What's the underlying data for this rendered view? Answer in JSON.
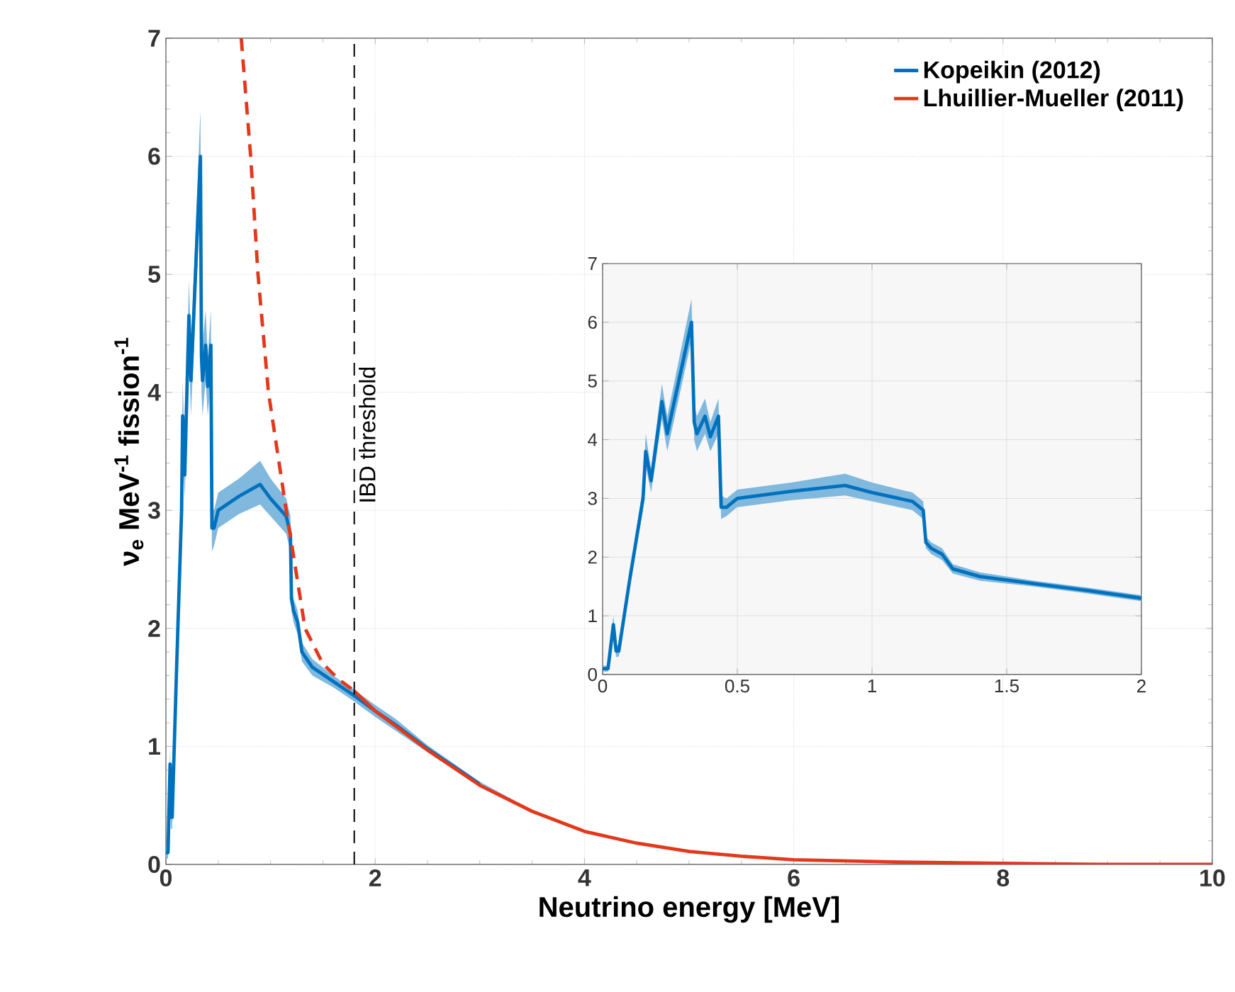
{
  "chart_data": [
    {
      "type": "line",
      "xlabel": "Neutrino energy [MeV]",
      "ylabel": "ν$_{e}$ MeV$^{-1}$ fission$^{-1}$",
      "xlim": [
        0,
        10
      ],
      "ylim": [
        0,
        7
      ],
      "xticks": [
        0,
        2,
        4,
        6,
        8,
        10
      ],
      "yticks": [
        0,
        1,
        2,
        3,
        4,
        5,
        6,
        7
      ],
      "grid": true,
      "legend": "top right",
      "marker": "none",
      "series": [
        {
          "name": "Kopeikin (2012)",
          "color": "#0072bd",
          "line_style": "solid",
          "x": [
            0,
            0.02,
            0.04,
            0.05,
            0.06,
            0.1,
            0.15,
            0.16,
            0.18,
            0.22,
            0.24,
            0.33,
            0.34,
            0.35,
            0.38,
            0.4,
            0.43,
            0.44,
            0.46,
            0.5,
            0.7,
            0.9,
            1.0,
            1.15,
            1.19,
            1.2,
            1.22,
            1.26,
            1.3,
            1.4,
            1.6,
            1.8,
            2.0,
            2.2,
            2.5,
            3,
            3.5,
            4,
            4.5,
            5,
            5.5,
            6,
            7,
            8,
            9,
            10
          ],
          "values": [
            0.1,
            0.1,
            0.85,
            0.4,
            0.4,
            1.6,
            3.0,
            3.8,
            3.3,
            4.65,
            4.1,
            6.0,
            4.3,
            4.1,
            4.4,
            4.05,
            4.4,
            2.85,
            2.85,
            3.0,
            3.12,
            3.22,
            3.1,
            2.95,
            2.8,
            2.25,
            2.15,
            2.05,
            1.8,
            1.67,
            1.55,
            1.43,
            1.3,
            1.18,
            0.98,
            0.68,
            null,
            null,
            null,
            null,
            null,
            null,
            null,
            null,
            null,
            null
          ],
          "lower": [
            0.05,
            0.05,
            0.7,
            0.3,
            0.3,
            1.5,
            2.8,
            3.55,
            3.1,
            4.35,
            3.8,
            5.7,
            4.0,
            3.8,
            4.1,
            3.8,
            4.1,
            2.65,
            2.7,
            2.85,
            2.97,
            3.05,
            2.95,
            2.8,
            2.65,
            2.15,
            2.05,
            1.95,
            1.72,
            1.6,
            1.5,
            1.38,
            1.25,
            1.13,
            0.95,
            0.66,
            0.44,
            0.27,
            0.17,
            0.1,
            0.06,
            0.03,
            0.01,
            0,
            0,
            0
          ],
          "upper": [
            0.15,
            0.15,
            1.0,
            0.5,
            0.5,
            1.7,
            3.2,
            4.1,
            3.5,
            4.95,
            4.4,
            6.4,
            4.6,
            4.4,
            4.7,
            4.3,
            4.7,
            3.05,
            3.0,
            3.15,
            3.27,
            3.42,
            3.27,
            3.1,
            2.95,
            2.35,
            2.25,
            2.15,
            1.88,
            1.74,
            1.6,
            1.48,
            1.35,
            1.23,
            1.01,
            0.7,
            0.46,
            0.29,
            0.19,
            0.12,
            0.08,
            0.05,
            0.02,
            0.01,
            0,
            0
          ]
        },
        {
          "color": "#e2381b",
          "line_style": "dashed",
          "x": [
            0.72,
            0.81,
            0.88,
            0.98,
            1.15,
            1.33,
            1.5,
            1.65,
            1.8
          ],
          "values": [
            7,
            6,
            5,
            4,
            3,
            2,
            1.7,
            1.57,
            1.47
          ]
        },
        {
          "name": "Lhuillier-Mueller (2011)",
          "color": "#e2381b",
          "line_style": "solid",
          "x": [
            1.8,
            2.0,
            2.2,
            2.5,
            3,
            3.5,
            4,
            4.5,
            5,
            5.5,
            6,
            7,
            8,
            9,
            10
          ],
          "values": [
            1.47,
            1.3,
            1.17,
            0.97,
            0.67,
            0.45,
            0.28,
            0.18,
            0.11,
            0.07,
            0.04,
            0.02,
            0.01,
            0,
            0
          ]
        }
      ],
      "ref_lines": [
        {
          "axis": "x",
          "value": 1.8,
          "label": "IBD threshold",
          "color": "#000000",
          "line_style": "dashed"
        }
      ]
    },
    {
      "type": "line",
      "xlim": [
        0,
        2
      ],
      "ylim": [
        0,
        7
      ],
      "xticks": [
        0,
        0.5,
        1,
        1.5,
        2
      ],
      "yticks": [
        0,
        1,
        2,
        3,
        4,
        5,
        6,
        7
      ],
      "grid": true,
      "marker": "none",
      "series": [
        {
          "color": "#0072bd",
          "line_style": "solid",
          "x": [
            0,
            0.02,
            0.04,
            0.05,
            0.06,
            0.1,
            0.15,
            0.16,
            0.18,
            0.22,
            0.24,
            0.33,
            0.34,
            0.35,
            0.38,
            0.4,
            0.43,
            0.44,
            0.46,
            0.5,
            0.7,
            0.9,
            1.0,
            1.15,
            1.19,
            1.2,
            1.22,
            1.26,
            1.3,
            1.4,
            1.6,
            1.8,
            2.0
          ],
          "values": [
            0.1,
            0.1,
            0.85,
            0.4,
            0.4,
            1.6,
            3.0,
            3.8,
            3.3,
            4.65,
            4.1,
            6.0,
            4.3,
            4.1,
            4.4,
            4.05,
            4.4,
            2.85,
            2.85,
            3.0,
            3.12,
            3.22,
            3.1,
            2.95,
            2.8,
            2.25,
            2.15,
            2.05,
            1.8,
            1.67,
            1.55,
            1.43,
            1.3
          ],
          "lower": [
            0.05,
            0.05,
            0.7,
            0.3,
            0.3,
            1.5,
            2.8,
            3.55,
            3.1,
            4.35,
            3.8,
            5.7,
            4.0,
            3.8,
            4.1,
            3.8,
            4.1,
            2.65,
            2.7,
            2.85,
            2.97,
            3.05,
            2.95,
            2.8,
            2.65,
            2.15,
            2.05,
            1.95,
            1.72,
            1.6,
            1.5,
            1.38,
            1.25
          ],
          "upper": [
            0.15,
            0.15,
            1.0,
            0.5,
            0.5,
            1.7,
            3.2,
            4.1,
            3.5,
            4.95,
            4.4,
            6.4,
            4.6,
            4.4,
            4.7,
            4.3,
            4.7,
            3.05,
            3.0,
            3.15,
            3.27,
            3.42,
            3.27,
            3.1,
            2.95,
            2.35,
            2.25,
            2.15,
            1.88,
            1.74,
            1.6,
            1.48,
            1.35
          ]
        }
      ]
    }
  ]
}
